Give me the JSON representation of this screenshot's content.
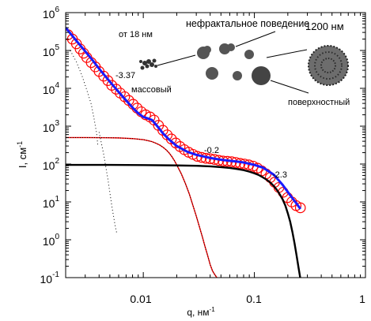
{
  "chart_data": {
    "type": "scatter",
    "title": "",
    "xlabel": "q, нм",
    "xlabel_exponent": "-1",
    "ylabel": "I, см",
    "ylabel_exponent": "-1",
    "x_scale": "log",
    "y_scale": "log",
    "xlim": [
      0.002,
      1
    ],
    "ylim": [
      0.1,
      1000000
    ],
    "x_ticks": [
      {
        "value": 0.01,
        "label": "0.01"
      },
      {
        "value": 0.1,
        "label": "0.1"
      },
      {
        "value": 1,
        "label": "1"
      }
    ],
    "y_ticks": [
      {
        "value": 0.1,
        "base": "10",
        "exp": "-1"
      },
      {
        "value": 1,
        "base": "10",
        "exp": "0"
      },
      {
        "value": 10,
        "base": "10",
        "exp": "1"
      },
      {
        "value": 100,
        "base": "10",
        "exp": "2"
      },
      {
        "value": 1000,
        "base": "10",
        "exp": "3"
      },
      {
        "value": 10000,
        "base": "10",
        "exp": "4"
      },
      {
        "value": 100000,
        "base": "10",
        "exp": "5"
      },
      {
        "value": 1000000,
        "base": "10",
        "exp": "6"
      }
    ],
    "grid": false,
    "colors": {
      "measured": "#ff0000",
      "fit": "#1a1aff",
      "components": "#000000"
    },
    "series": [
      {
        "kind": "markers",
        "style": "open-circles",
        "x": [
          0.0021,
          0.0023,
          0.0025,
          0.0027,
          0.0029,
          0.0031,
          0.0034,
          0.0037,
          0.004,
          0.0044,
          0.0048,
          0.0052,
          0.0057,
          0.0062,
          0.0068,
          0.0074,
          0.0081,
          0.0088,
          0.0096,
          0.0105,
          0.0115,
          0.0125,
          0.0137,
          0.015,
          0.0164,
          0.0179,
          0.0196,
          0.0214,
          0.0234,
          0.0256,
          0.028,
          0.0306,
          0.0335,
          0.0366,
          0.04,
          0.0437,
          0.0478,
          0.0522,
          0.0571,
          0.0624,
          0.0682,
          0.0746,
          0.0815,
          0.0891,
          0.0974,
          0.1065,
          0.1164,
          0.1273,
          0.1391,
          0.1521,
          0.1662,
          0.1817,
          0.1986,
          0.2171,
          0.2373,
          0.2594
        ],
        "y": [
          260000,
          200000,
          150000,
          110000,
          85000,
          65000,
          48000,
          37000,
          28000,
          21000,
          16000,
          12000,
          9500,
          7500,
          6000,
          4800,
          3800,
          3000,
          2400,
          2000,
          1750,
          1450,
          1050,
          780,
          590,
          460,
          360,
          290,
          240,
          205,
          180,
          160,
          150,
          142,
          138,
          132,
          125,
          120,
          118,
          115,
          110,
          104,
          100,
          95,
          88,
          78,
          66,
          55,
          44,
          33,
          24,
          18,
          13,
          10,
          8,
          7
        ]
      },
      {
        "kind": "line",
        "style": "solid-thick",
        "x": [
          0.002,
          0.0025,
          0.003,
          0.0035,
          0.004,
          0.005,
          0.006,
          0.007,
          0.008,
          0.009,
          0.01,
          0.011,
          0.012,
          0.013,
          0.014,
          0.015,
          0.017,
          0.02,
          0.025,
          0.03,
          0.04,
          0.05,
          0.06,
          0.07,
          0.08,
          0.1,
          0.12,
          0.15,
          0.18,
          0.21,
          0.24,
          0.26
        ],
        "y": [
          400000,
          180000,
          95000,
          55000,
          33000,
          15000,
          8000,
          4800,
          3100,
          2200,
          1750,
          1600,
          1450,
          1100,
          850,
          650,
          450,
          300,
          210,
          175,
          145,
          130,
          122,
          116,
          110,
          95,
          80,
          52,
          28,
          15,
          9,
          6.5
        ]
      },
      {
        "kind": "line",
        "style": "solid-with-dots",
        "x": [
          0.002,
          0.003,
          0.004,
          0.005,
          0.006,
          0.007,
          0.008,
          0.009,
          0.01,
          0.011,
          0.012,
          0.013,
          0.014,
          0.015,
          0.016,
          0.017,
          0.018,
          0.019,
          0.02,
          0.022,
          0.024,
          0.026,
          0.028,
          0.03,
          0.032,
          0.034,
          0.036,
          0.038,
          0.04,
          0.042,
          0.044,
          0.046,
          0.047
        ],
        "y": [
          500,
          500,
          498,
          495,
          490,
          480,
          470,
          455,
          440,
          415,
          390,
          355,
          320,
          280,
          240,
          200,
          160,
          125,
          95,
          55,
          30,
          16,
          8,
          4.2,
          2.2,
          1.2,
          0.65,
          0.38,
          0.22,
          0.15,
          0.12,
          0.1,
          0.09
        ]
      },
      {
        "kind": "line",
        "style": "solid-thick",
        "x": [
          0.002,
          0.005,
          0.01,
          0.02,
          0.03,
          0.04,
          0.05,
          0.06,
          0.07,
          0.08,
          0.09,
          0.1,
          0.11,
          0.12,
          0.13,
          0.14,
          0.15,
          0.16,
          0.17,
          0.18,
          0.19,
          0.2,
          0.21,
          0.22,
          0.23,
          0.24,
          0.25,
          0.26
        ],
        "y": [
          95,
          95,
          94,
          92,
          90,
          87,
          83,
          79,
          74,
          69,
          63,
          57,
          51,
          44,
          38,
          32,
          26,
          20.5,
          15.5,
          11.5,
          8,
          5,
          3,
          1.6,
          0.8,
          0.38,
          0.18,
          0.09
        ]
      },
      {
        "kind": "line",
        "style": "dotted",
        "x": [
          0.0022,
          0.0025,
          0.0028,
          0.0031,
          0.0034,
          0.0036,
          0.0038,
          0.0039
        ],
        "y": [
          100000,
          50000,
          22000,
          9000,
          3800,
          1600,
          650,
          300
        ]
      },
      {
        "kind": "line",
        "style": "dotted",
        "x": [
          0.004,
          0.0044,
          0.0048,
          0.0052,
          0.0056,
          0.0058
        ],
        "y": [
          700,
          180,
          40,
          8,
          2.2,
          1.4
        ]
      }
    ],
    "annotations": {
      "from_size": "от 18 нм",
      "nonfractal": "нефрактальное поведение",
      "size_1200": "1200 нм",
      "mass_slope": "-3.37",
      "mass": "массовый",
      "surface": "поверхностный",
      "slope_02": "-0.2",
      "slope_23": "-2.3"
    }
  }
}
